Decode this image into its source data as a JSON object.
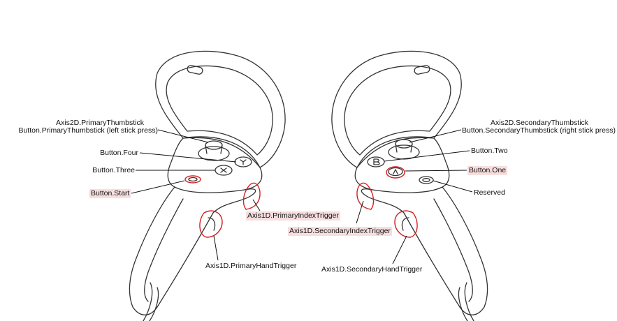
{
  "colors": {
    "outline": "#333333",
    "highlight": "#d42020",
    "highlight_bg": "#f7dede",
    "leader": "#111111"
  },
  "left_controller": {
    "thumbstick_axis": "Axis2D.PrimaryThumbstick",
    "thumbstick_press": "Button.PrimaryThumbstick (left stick press)",
    "button_four": "Button.Four",
    "button_three": "Button.Three",
    "button_start": "Button.Start",
    "index_trigger": "Axis1D.PrimaryIndexTrigger",
    "hand_trigger": "Axis1D.PrimaryHandTrigger"
  },
  "right_controller": {
    "thumbstick_axis": "Axis2D.SecondaryThumbstick",
    "thumbstick_press": "Button.SecondaryThumbstick (right stick press)",
    "button_two": "Button.Two",
    "button_one": "Button.One",
    "reserved": "Reserved",
    "index_trigger": "Axis1D.SecondaryIndexTrigger",
    "hand_trigger": "Axis1D.SecondaryHandTrigger"
  }
}
